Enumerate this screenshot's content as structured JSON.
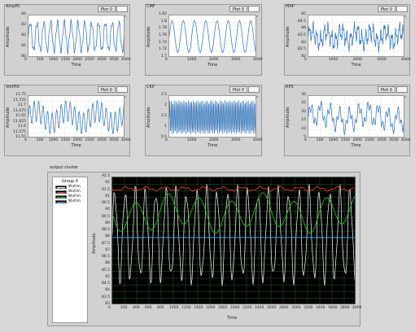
{
  "legend_label": "Plot 0",
  "charts": [
    {
      "title": "AmpFit",
      "ylabel": "Amplitude",
      "xlabel": "Time",
      "yticks": [
        "84",
        "83",
        "82",
        "81",
        "80"
      ],
      "xticks": [
        "0",
        "500",
        "1000",
        "1500",
        "2000",
        "2500",
        "3000",
        "3500",
        "4000"
      ]
    },
    {
      "title": "CMF",
      "ylabel": "Amplitude",
      "xlabel": "Time",
      "yticks": [
        "1.82",
        "1.8",
        "1.78",
        "1.76",
        "1.74",
        "1.72",
        "1.7"
      ],
      "xticks": [
        "0",
        "1000",
        "2000",
        "3000",
        "4000"
      ]
    },
    {
      "title": "MAP",
      "ylabel": "Amplitude",
      "xlabel": "Time",
      "yticks": [
        "85",
        "84.5",
        "84",
        "83.5",
        "83",
        "82.5",
        "82"
      ],
      "xticks": [
        "0",
        "1000",
        "2000",
        "3000",
        "4000"
      ]
    },
    {
      "title": "VoltFilt",
      "ylabel": "Amplitude",
      "xlabel": "Time",
      "yticks": [
        "11.75",
        "11.725",
        "11.7",
        "11.675",
        "11.65",
        "11.625",
        "11.6",
        "11.575",
        "11.55"
      ],
      "xticks": [
        "0",
        "500",
        "1000",
        "1500",
        "2000",
        "2500",
        "3000",
        "3500",
        "4000"
      ]
    },
    {
      "title": "CKP",
      "ylabel": "Amplitude",
      "xlabel": "Time",
      "yticks": [
        "2.5",
        "2",
        "1.5",
        "1",
        "0.5"
      ],
      "xticks": [
        "0",
        "1000",
        "2000",
        "3000",
        "4000"
      ]
    },
    {
      "title": "RPS",
      "ylabel": "Amplitude",
      "xlabel": "Time",
      "yticks": [
        "30",
        "25",
        "20",
        "15",
        "10",
        "5"
      ],
      "xticks": [
        "0",
        "500",
        "1000",
        "1500",
        "2000",
        "2500",
        "3000",
        "3500",
        "4000"
      ]
    }
  ],
  "output": {
    "title": "output cluster",
    "group": "Group 0",
    "series": [
      "Wvfrm",
      "Wvfrm",
      "Wvfrm",
      "Wvfrm"
    ],
    "series_colors": [
      "#ffffff",
      "#ff3b3b",
      "#22cc22",
      "#3aa0ff"
    ],
    "ylabel": "Amplitude",
    "xlabel": "Time",
    "yticks": [
      "92.5",
      "92",
      "91.5",
      "91",
      "90.5",
      "90",
      "89.5",
      "89",
      "88.5",
      "88",
      "87.5",
      "87",
      "86.5",
      "86",
      "85.5",
      "85",
      "84.5",
      "84",
      "83.5",
      "83"
    ],
    "xticks": [
      "0",
      "200",
      "400",
      "600",
      "800",
      "1000",
      "1200",
      "1400",
      "1600",
      "1800",
      "2000",
      "2200",
      "2400",
      "2600",
      "2800",
      "3000",
      "3200",
      "3400",
      "3600",
      "3800",
      "4000"
    ]
  }
}
